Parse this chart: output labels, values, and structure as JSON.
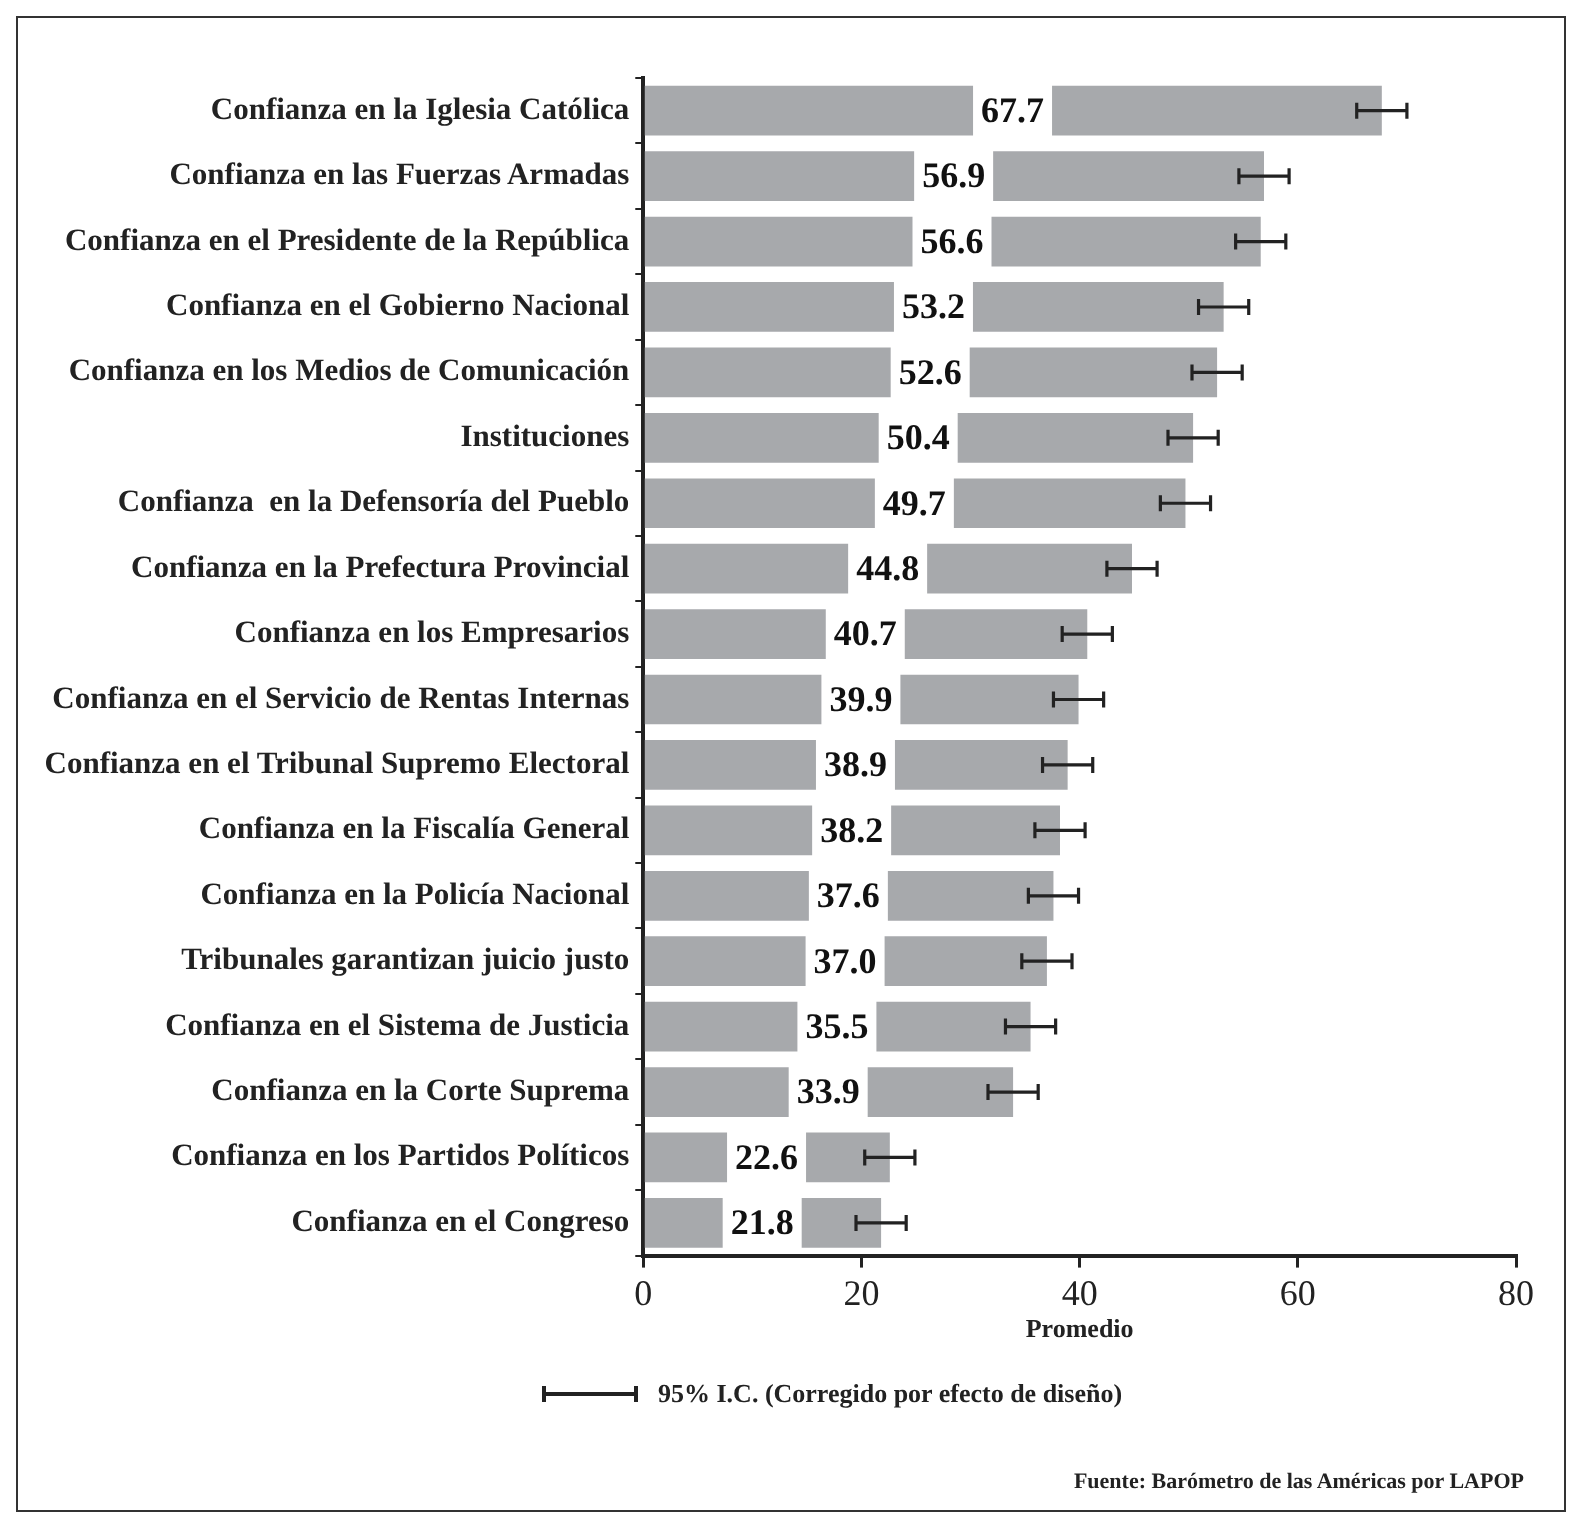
{
  "chart_data": {
    "type": "bar",
    "orientation": "horizontal",
    "xlabel": "Promedio",
    "categories": [
      "Confianza en la Iglesia Católica",
      "Confianza en las Fuerzas Armadas",
      "Confianza en el Presidente de la República",
      "Confianza en el Gobierno Nacional",
      "Confianza en los Medios de Comunicación",
      "Instituciones",
      "Confianza  en la Defensoría del Pueblo",
      "Confianza en la Prefectura Provincial",
      "Confianza en los Empresarios",
      "Confianza en el Servicio de Rentas Internas",
      "Confianza en el Tribunal Supremo Electoral",
      "Confianza en la Fiscalía General",
      "Confianza en la Policía Nacional",
      "Tribunales garantizan juicio justo",
      "Confianza en el Sistema de Justicia",
      "Confianza en la Corte Suprema",
      "Confianza en los Partidos Políticos",
      "Confianza en el Congreso"
    ],
    "values": [
      67.7,
      56.9,
      56.6,
      53.2,
      52.6,
      50.4,
      49.7,
      44.8,
      40.7,
      39.9,
      38.9,
      38.2,
      37.6,
      37.0,
      35.5,
      33.9,
      22.6,
      21.8
    ],
    "errors": [
      2.3,
      2.3,
      2.3,
      2.3,
      2.3,
      2.3,
      2.3,
      2.3,
      2.3,
      2.3,
      2.3,
      2.3,
      2.3,
      2.3,
      2.3,
      2.3,
      2.3,
      2.3
    ],
    "color": "#a7a9ac",
    "xlim": [
      0,
      80
    ],
    "xticks": [
      0,
      20,
      40,
      60,
      80
    ],
    "grid": false,
    "value_labels": [
      "67.7",
      "56.9",
      "56.6",
      "53.2",
      "52.6",
      "50.4",
      "49.7",
      "44.8",
      "40.7",
      "39.9",
      "38.9",
      "38.2",
      "37.6",
      "37.0",
      "35.5",
      "33.9",
      "22.6",
      "21.8"
    ],
    "annotations": [
      "95% I.C. (Corregido por efecto de diseño)",
      "Fuente: Barómetro de las Américas por LAPOP"
    ]
  }
}
